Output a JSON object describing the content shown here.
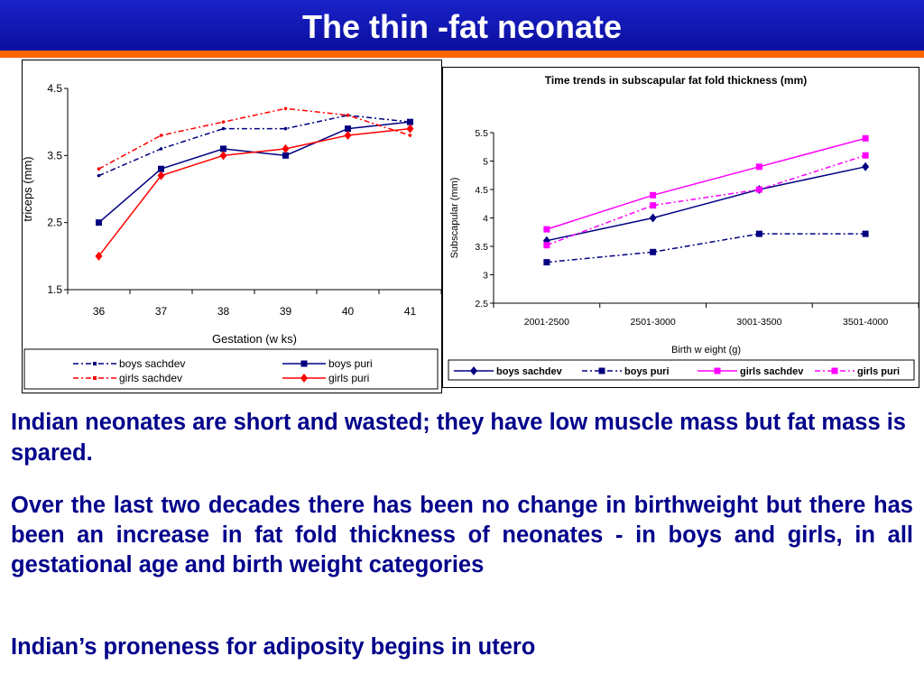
{
  "header": {
    "title": "The thin -fat neonate"
  },
  "colors": {
    "title_bar": "#0b0f9e",
    "accent_rule": "#ff6600",
    "body_text": "#00008b",
    "navy_series": "#000080",
    "red_series": "#ff0000",
    "magenta_series": "#ff00ff"
  },
  "chart_data": [
    {
      "type": "line",
      "title": "",
      "xlabel": "Gestation (w ks)",
      "ylabel": "triceps (mm)",
      "categories": [
        "36",
        "37",
        "38",
        "39",
        "40",
        "41"
      ],
      "ylim": [
        1.5,
        4.5
      ],
      "yticks": [
        "1.5",
        "2.5",
        "3.5",
        "4.5"
      ],
      "grid": false,
      "legend_position": "bottom",
      "series": [
        {
          "name": "boys sachdev",
          "values": [
            3.2,
            3.6,
            3.9,
            3.9,
            4.1,
            4.0
          ],
          "color": "#000080",
          "style": "dash-dot",
          "marker": "none"
        },
        {
          "name": "boys puri",
          "values": [
            2.5,
            3.3,
            3.6,
            3.5,
            3.9,
            4.0
          ],
          "color": "#000080",
          "style": "solid",
          "marker": "square"
        },
        {
          "name": "girls sachdev",
          "values": [
            3.3,
            3.8,
            4.0,
            4.2,
            4.1,
            3.8
          ],
          "color": "#ff0000",
          "style": "dash-dot",
          "marker": "none"
        },
        {
          "name": "girls puri",
          "values": [
            2.0,
            3.2,
            3.5,
            3.6,
            3.8,
            3.9
          ],
          "color": "#ff0000",
          "style": "solid",
          "marker": "diamond"
        }
      ]
    },
    {
      "type": "line",
      "title": "Time trends in subscapular fat fold thickness (mm)",
      "xlabel": "Birth w eight (g)",
      "ylabel": "Subscapular (mm)",
      "categories": [
        "2001-2500",
        "2501-3000",
        "3001-3500",
        "3501-4000"
      ],
      "ylim": [
        2.5,
        5.5
      ],
      "yticks": [
        "2.5",
        "3",
        "3.5",
        "4",
        "4.5",
        "5",
        "5.5"
      ],
      "grid": false,
      "legend_position": "bottom",
      "series": [
        {
          "name": "boys sachdev",
          "values": [
            3.6,
            4.0,
            4.5,
            4.9
          ],
          "color": "#000080",
          "style": "solid",
          "marker": "diamond"
        },
        {
          "name": "boys puri",
          "values": [
            3.22,
            3.4,
            3.72,
            3.72
          ],
          "color": "#000080",
          "style": "dash-dot",
          "marker": "square"
        },
        {
          "name": "girls sachdev",
          "values": [
            3.8,
            4.4,
            4.9,
            5.4
          ],
          "color": "#ff00ff",
          "style": "solid",
          "marker": "square"
        },
        {
          "name": "girls puri",
          "values": [
            3.52,
            4.22,
            4.5,
            5.1
          ],
          "color": "#ff00ff",
          "style": "dash-dot",
          "marker": "square"
        }
      ]
    }
  ],
  "body": {
    "para1": "Indian neonates are short and wasted; they  have  low muscle mass but fat mass is spared.",
    "para2": "Over the last two  decades  there has  been no change in birthweight  but there has been an increase  in fat fold thickness  of neonates - in boys and girls,  in all  gestational age and birth weight categories",
    "para3": "Indian’s proneness for adiposity begins in utero"
  }
}
